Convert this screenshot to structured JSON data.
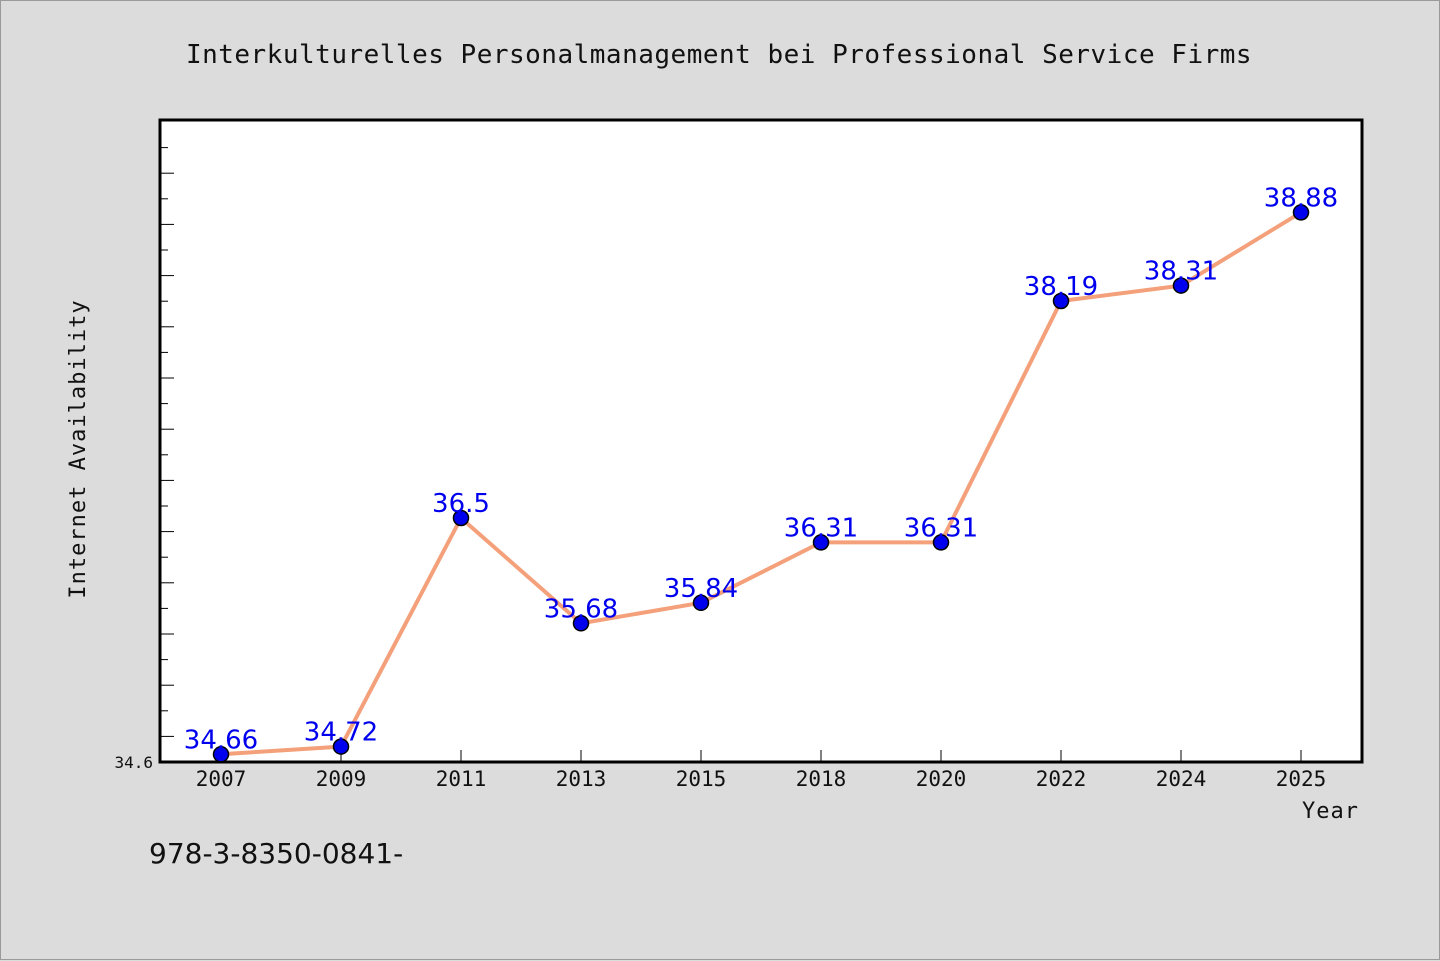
{
  "chart_data": {
    "type": "line",
    "title": "Interkulturelles Personalmanagement bei Professional Service Firms",
    "xlabel": "Year",
    "ylabel": "Internet Availability",
    "categories": [
      "2007",
      "2009",
      "2011",
      "2013",
      "2015",
      "2018",
      "2020",
      "2022",
      "2024",
      "2025"
    ],
    "series": [
      {
        "values": [
          34.66,
          34.72,
          36.5,
          35.68,
          35.84,
          36.31,
          36.31,
          38.19,
          38.31,
          38.88
        ],
        "labels": [
          "34.66",
          "34.72",
          "36.5",
          "35.68",
          "35.84",
          "36.31",
          "36.31",
          "38.19",
          "38.31",
          "38.88"
        ]
      }
    ],
    "ylim": [
      34.6,
      39.6
    ],
    "y_min_label": "34.6",
    "grid": false,
    "line_color": "#f4a07a",
    "marker_color": "#0000ee",
    "label_color": "#0000ee"
  },
  "footer": {
    "caption": "978-3-8350-0841-"
  }
}
